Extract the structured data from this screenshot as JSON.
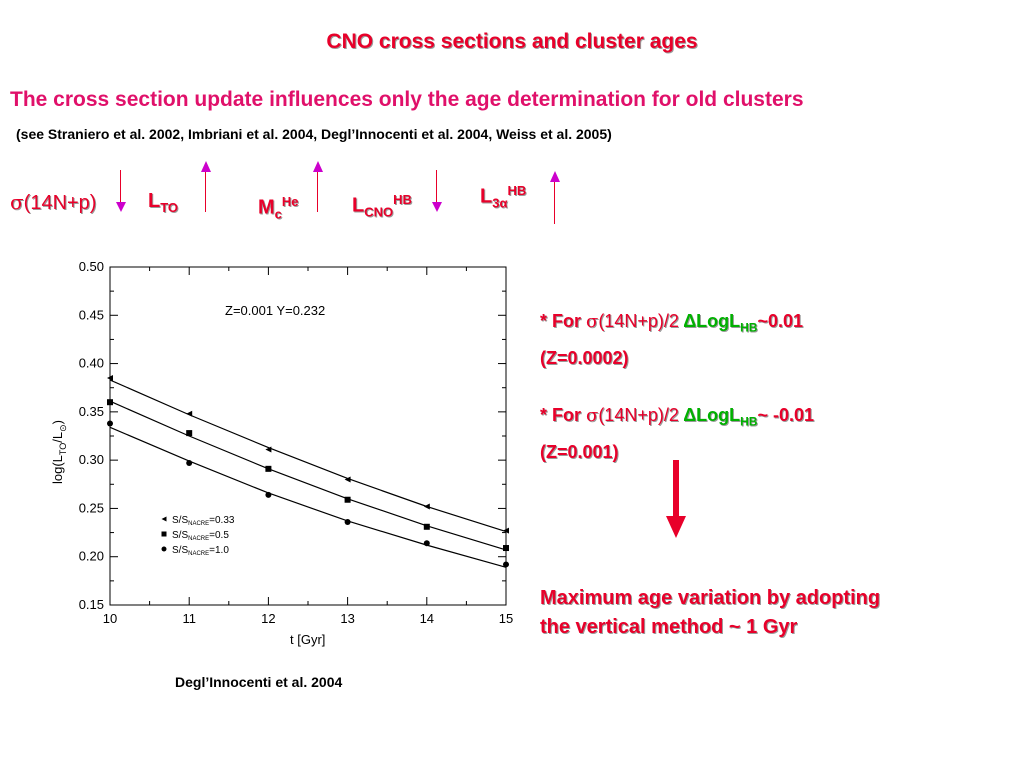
{
  "title": "CNO cross sections and cluster ages",
  "subtitle": "The cross section update influences only the age determination for old clusters",
  "references": "(see Straniero et al. 2002, Imbriani et al. 2004, Degl’Innocenti et al. 2004, Weiss et al. 2005)",
  "effects": {
    "sigma_label": "σ",
    "reaction_label": "(14N+p)",
    "lto_main": "L",
    "lto_sub": "TO",
    "mc_main": "M",
    "mc_sub": "c",
    "mc_sup": "He",
    "lcno_main": "L",
    "lcno_sub": "CNO",
    "lcno_sup": "HB",
    "l3a_main": "L",
    "l3a_sub": "3α",
    "l3a_sup": "HB"
  },
  "notes": {
    "n1_prefix": "* For ",
    "n1_sigma": "σ",
    "n1_reaction": "(14N+p)/2",
    "n1_delta": "ΔLogL",
    "n1_sub": "HB",
    "n1_value": "~0.01",
    "n1_z": "(Z=0.0002)",
    "n2_prefix": "* For ",
    "n2_sigma": "σ",
    "n2_reaction": "(14N+p)/2",
    "n2_delta": "ΔLogL",
    "n2_sub": "HB",
    "n2_value": "~ -0.01",
    "n2_z": "(Z=0.001)"
  },
  "conclusion": {
    "line1": "Maximum age variation by adopting",
    "line2": "the vertical method ~ 1 Gyr"
  },
  "caption": "Degl’Innocenti et al. 2004",
  "colors": {
    "red": "#e8002a",
    "magenta": "#e0106a",
    "purple": "#cc00cc",
    "green": "#00b000"
  },
  "chart_data": {
    "type": "scatter",
    "annotation": "Z=0.001 Y=0.232",
    "xlabel": "t [Gyr]",
    "ylabel": "log(L_TO/L_⊙)",
    "ylabel_main": "log(L",
    "ylabel_sub": "TO",
    "ylabel_mid": "/L",
    "ylabel_sub2": "⊙",
    "ylabel_end": ")",
    "xlim": [
      10,
      15
    ],
    "ylim": [
      0.15,
      0.5
    ],
    "x_ticks": [
      10,
      11,
      12,
      13,
      14,
      15
    ],
    "x_tick_labels": [
      "10",
      "11",
      "12",
      "13",
      "14",
      "15"
    ],
    "y_ticks": [
      0.15,
      0.2,
      0.25,
      0.3,
      0.35,
      0.4,
      0.45,
      0.5
    ],
    "y_tick_labels": [
      "0.15",
      "0.20",
      "0.25",
      "0.30",
      "0.35",
      "0.40",
      "0.45",
      "0.50"
    ],
    "x": [
      10,
      11,
      12,
      13,
      14,
      15
    ],
    "series": [
      {
        "name": "S/S_NACRE=0.33",
        "marker": "triangle",
        "values": [
          0.385,
          0.348,
          0.311,
          0.28,
          0.252,
          0.227
        ]
      },
      {
        "name": "S/S_NACRE=0.5",
        "marker": "square",
        "values": [
          0.36,
          0.328,
          0.291,
          0.259,
          0.231,
          0.209
        ]
      },
      {
        "name": "S/S_NACRE=1.0",
        "marker": "circle",
        "values": [
          0.338,
          0.297,
          0.264,
          0.236,
          0.214,
          0.192
        ]
      }
    ],
    "fit_lines": [
      {
        "name": "fit-0.33",
        "values": [
          0.383,
          0.347,
          0.313,
          0.281,
          0.252,
          0.226
        ]
      },
      {
        "name": "fit-0.5",
        "values": [
          0.361,
          0.325,
          0.291,
          0.26,
          0.232,
          0.207
        ]
      },
      {
        "name": "fit-1.0",
        "values": [
          0.334,
          0.299,
          0.266,
          0.237,
          0.212,
          0.189
        ]
      }
    ],
    "legend": [
      {
        "prefix": "S/S",
        "sub": "NACRE",
        "suffix": "=0.33",
        "marker": "triangle"
      },
      {
        "prefix": "S/S",
        "sub": "NACRE",
        "suffix": "=0.5",
        "marker": "square"
      },
      {
        "prefix": "S/S",
        "sub": "NACRE",
        "suffix": "=1.0",
        "marker": "circle"
      }
    ]
  }
}
